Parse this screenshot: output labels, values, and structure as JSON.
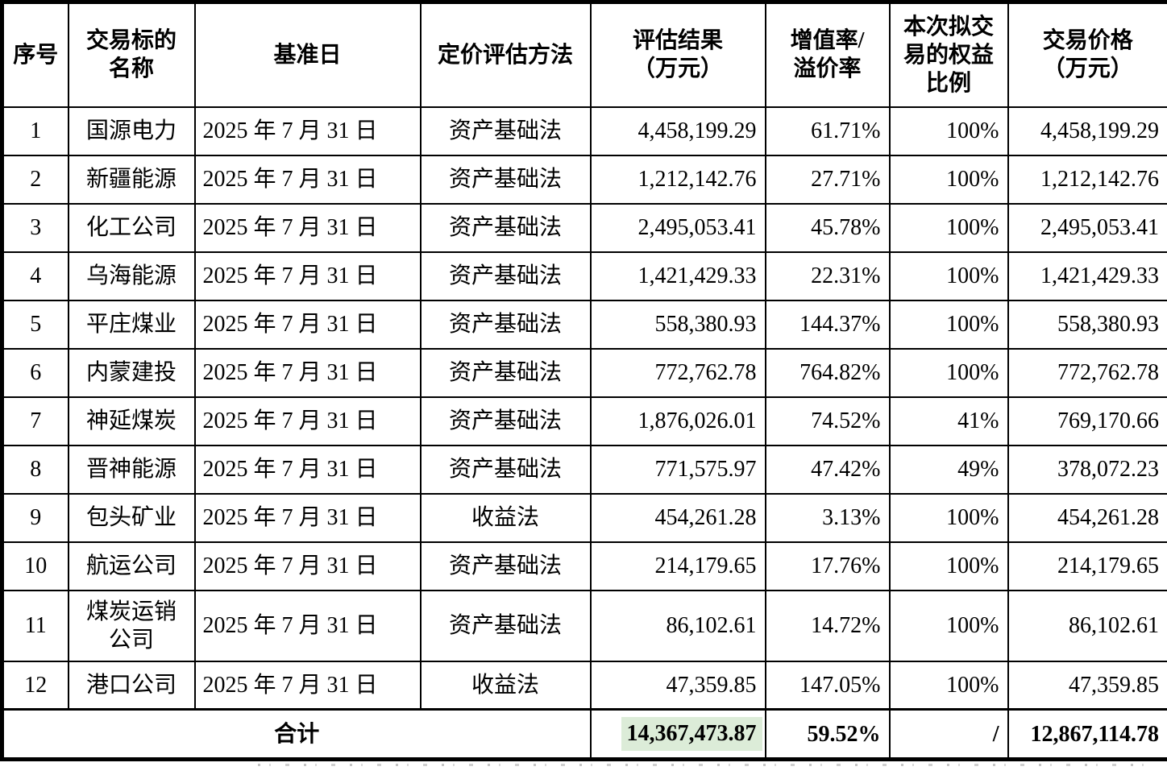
{
  "table": {
    "columns": [
      {
        "key": "index",
        "label": "序号"
      },
      {
        "key": "name",
        "label": "交易标的\n名称"
      },
      {
        "key": "base_date",
        "label": "基准日"
      },
      {
        "key": "method",
        "label": "定价评估方法"
      },
      {
        "key": "appraisal",
        "label": "评估结果\n（万元）"
      },
      {
        "key": "premium",
        "label": "增值率/\n溢价率"
      },
      {
        "key": "equity",
        "label": "本次拟交\n易的权益\n比例"
      },
      {
        "key": "price",
        "label": "交易价格\n（万元）"
      }
    ],
    "rows": [
      [
        "1",
        "国源电力",
        "2025 年 7 月 31 日",
        "资产基础法",
        "4,458,199.29",
        "61.71%",
        "100%",
        "4,458,199.29"
      ],
      [
        "2",
        "新疆能源",
        "2025 年 7 月 31 日",
        "资产基础法",
        "1,212,142.76",
        "27.71%",
        "100%",
        "1,212,142.76"
      ],
      [
        "3",
        "化工公司",
        "2025 年 7 月 31 日",
        "资产基础法",
        "2,495,053.41",
        "45.78%",
        "100%",
        "2,495,053.41"
      ],
      [
        "4",
        "乌海能源",
        "2025 年 7 月 31 日",
        "资产基础法",
        "1,421,429.33",
        "22.31%",
        "100%",
        "1,421,429.33"
      ],
      [
        "5",
        "平庄煤业",
        "2025 年 7 月 31 日",
        "资产基础法",
        "558,380.93",
        "144.37%",
        "100%",
        "558,380.93"
      ],
      [
        "6",
        "内蒙建投",
        "2025 年 7 月 31 日",
        "资产基础法",
        "772,762.78",
        "764.82%",
        "100%",
        "772,762.78"
      ],
      [
        "7",
        "神延煤炭",
        "2025 年 7 月 31 日",
        "资产基础法",
        "1,876,026.01",
        "74.52%",
        "41%",
        "769,170.66"
      ],
      [
        "8",
        "晋神能源",
        "2025 年 7 月 31 日",
        "资产基础法",
        "771,575.97",
        "47.42%",
        "49%",
        "378,072.23"
      ],
      [
        "9",
        "包头矿业",
        "2025 年 7 月 31 日",
        "收益法",
        "454,261.28",
        "3.13%",
        "100%",
        "454,261.28"
      ],
      [
        "10",
        "航运公司",
        "2025 年 7 月 31 日",
        "资产基础法",
        "214,179.65",
        "17.76%",
        "100%",
        "214,179.65"
      ],
      [
        "11",
        "煤炭运销\n公司",
        "2025 年 7 月 31 日",
        "资产基础法",
        "86,102.61",
        "14.72%",
        "100%",
        "86,102.61"
      ],
      [
        "12",
        "港口公司",
        "2025 年 7 月 31 日",
        "收益法",
        "47,359.85",
        "147.05%",
        "100%",
        "47,359.85"
      ]
    ],
    "total": {
      "label": "合计",
      "appraisal": "14,367,473.87",
      "premium": "59.52%",
      "equity": "/",
      "price": "12,867,114.78",
      "highlight_color": "#dcecd8"
    }
  }
}
